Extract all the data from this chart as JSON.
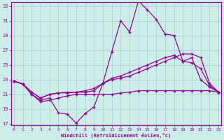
{
  "xlabel": "Windchill (Refroidissement éolien,°C)",
  "ylabel": "",
  "bg_color": "#cceee8",
  "grid_color": "#aacccc",
  "line_color": "#990099",
  "xlim": [
    0,
    23
  ],
  "ylim": [
    17,
    33
  ],
  "xticks": [
    0,
    1,
    2,
    3,
    4,
    5,
    6,
    7,
    8,
    9,
    10,
    11,
    12,
    13,
    14,
    15,
    16,
    17,
    18,
    19,
    20,
    21,
    22,
    23
  ],
  "yticks": [
    17,
    19,
    21,
    23,
    25,
    27,
    29,
    31,
    33
  ],
  "series": [
    [
      22.8,
      22.4,
      21.0,
      20.2,
      20.5,
      18.5,
      18.3,
      17.1,
      18.4,
      19.3,
      22.5,
      26.8,
      31.0,
      29.5,
      33.7,
      32.5,
      31.2,
      29.2,
      29.0,
      25.5,
      26.0,
      23.0,
      22.0,
      21.3
    ],
    [
      22.8,
      22.4,
      21.3,
      20.5,
      21.0,
      21.2,
      21.2,
      21.3,
      21.3,
      21.5,
      22.5,
      23.2,
      23.5,
      24.0,
      24.5,
      25.0,
      25.5,
      26.0,
      26.3,
      25.5,
      25.3,
      24.5,
      22.2,
      21.3
    ],
    [
      22.8,
      22.4,
      21.3,
      20.5,
      21.0,
      21.2,
      21.3,
      21.3,
      21.5,
      21.8,
      22.5,
      23.0,
      23.2,
      23.5,
      24.0,
      24.5,
      25.0,
      25.5,
      26.0,
      26.5,
      26.5,
      26.0,
      22.5,
      21.3
    ],
    [
      22.8,
      22.4,
      21.0,
      20.0,
      20.2,
      20.5,
      20.8,
      21.0,
      21.0,
      21.0,
      21.0,
      21.0,
      21.2,
      21.3,
      21.5,
      21.5,
      21.5,
      21.5,
      21.5,
      21.5,
      21.5,
      21.5,
      21.5,
      21.3
    ]
  ]
}
